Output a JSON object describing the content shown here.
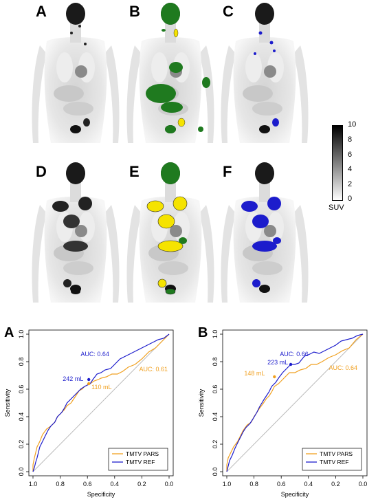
{
  "figure": {
    "pet_panels": [
      {
        "letter": "A",
        "overlay": "none"
      },
      {
        "letter": "B",
        "overlay": "yellow-green"
      },
      {
        "letter": "C",
        "overlay": "blue"
      },
      {
        "letter": "D",
        "overlay": "none"
      },
      {
        "letter": "E",
        "overlay": "yellow-green"
      },
      {
        "letter": "F",
        "overlay": "blue"
      }
    ],
    "colorbar": {
      "ticks": [
        "10",
        "8",
        "6",
        "4",
        "2",
        "0"
      ],
      "unit": "SUV"
    },
    "colors": {
      "pars": "#f0a020",
      "ref": "#1c1ccc",
      "green": "#1f7a1f",
      "yellow": "#f5e300",
      "diag": "#bbbbbb"
    }
  },
  "chart_data": [
    {
      "type": "line",
      "panel_letter": "A",
      "xlabel": "Specificity",
      "ylabel": "Sensitivity",
      "xlim": [
        1.0,
        0.0
      ],
      "ylim": [
        0.0,
        1.0
      ],
      "x_ticks": [
        "1.0",
        "0.8",
        "0.6",
        "0.4",
        "0.2",
        "0.0"
      ],
      "y_ticks": [
        "0.0",
        "0.2",
        "0.4",
        "0.6",
        "0.8",
        "1.0"
      ],
      "series": [
        {
          "name": "TMTV PARS",
          "color": "#f0a020",
          "x": [
            1.0,
            1.0,
            0.99,
            0.98,
            0.97,
            0.95,
            0.93,
            0.9,
            0.87,
            0.84,
            0.82,
            0.8,
            0.77,
            0.75,
            0.72,
            0.7,
            0.68,
            0.66,
            0.64,
            0.62,
            0.6,
            0.58,
            0.55,
            0.52,
            0.5,
            0.46,
            0.42,
            0.38,
            0.34,
            0.3,
            0.25,
            0.2,
            0.15,
            0.1,
            0.05,
            0.0
          ],
          "y": [
            0.0,
            0.05,
            0.1,
            0.14,
            0.18,
            0.22,
            0.27,
            0.31,
            0.33,
            0.36,
            0.4,
            0.42,
            0.45,
            0.48,
            0.5,
            0.53,
            0.56,
            0.59,
            0.6,
            0.62,
            0.63,
            0.64,
            0.66,
            0.67,
            0.68,
            0.69,
            0.71,
            0.71,
            0.73,
            0.76,
            0.78,
            0.82,
            0.87,
            0.9,
            0.95,
            1.0
          ]
        },
        {
          "name": "TMTV REF",
          "color": "#1c1ccc",
          "x": [
            1.0,
            0.99,
            0.98,
            0.97,
            0.96,
            0.95,
            0.93,
            0.91,
            0.89,
            0.87,
            0.84,
            0.82,
            0.79,
            0.77,
            0.75,
            0.73,
            0.7,
            0.68,
            0.65,
            0.62,
            0.6,
            0.58,
            0.56,
            0.53,
            0.5,
            0.47,
            0.43,
            0.4,
            0.36,
            0.32,
            0.28,
            0.24,
            0.2,
            0.16,
            0.12,
            0.08,
            0.04,
            0.0
          ],
          "y": [
            0.0,
            0.03,
            0.07,
            0.1,
            0.14,
            0.18,
            0.22,
            0.26,
            0.3,
            0.33,
            0.36,
            0.4,
            0.43,
            0.46,
            0.5,
            0.52,
            0.55,
            0.57,
            0.6,
            0.62,
            0.63,
            0.64,
            0.67,
            0.71,
            0.72,
            0.74,
            0.75,
            0.78,
            0.82,
            0.84,
            0.86,
            0.88,
            0.9,
            0.92,
            0.94,
            0.96,
            0.97,
            1.0
          ]
        }
      ],
      "annotations": [
        {
          "text": "AUC: 0.64",
          "color": "#1c1ccc",
          "x": 0.44,
          "y": 0.84,
          "anchor": "end"
        },
        {
          "text": "AUC: 0.61",
          "color": "#f0a020",
          "x": 0.22,
          "y": 0.73,
          "anchor": "start"
        },
        {
          "text": "242 mL",
          "color": "#1c1ccc",
          "x": 0.63,
          "y": 0.66,
          "anchor": "end",
          "point": [
            0.59,
            0.67
          ]
        },
        {
          "text": "110 mL",
          "color": "#f0a020",
          "x": 0.57,
          "y": 0.6,
          "anchor": "start",
          "point": [
            0.59,
            0.64
          ]
        }
      ],
      "legend": {
        "position": "bottom-right",
        "entries": [
          "TMTV PARS",
          "TMTV REF"
        ]
      }
    },
    {
      "type": "line",
      "panel_letter": "B",
      "xlabel": "Specificity",
      "ylabel": "Sensitivity",
      "xlim": [
        1.0,
        0.0
      ],
      "ylim": [
        0.0,
        1.0
      ],
      "x_ticks": [
        "1.0",
        "0.8",
        "0.6",
        "0.4",
        "0.2",
        "0.0"
      ],
      "y_ticks": [
        "0.0",
        "0.2",
        "0.4",
        "0.6",
        "0.8",
        "1.0"
      ],
      "series": [
        {
          "name": "TMTV PARS",
          "color": "#f0a020",
          "x": [
            1.0,
            1.0,
            0.99,
            0.97,
            0.95,
            0.92,
            0.9,
            0.88,
            0.85,
            0.82,
            0.8,
            0.78,
            0.76,
            0.73,
            0.71,
            0.69,
            0.67,
            0.65,
            0.62,
            0.6,
            0.57,
            0.54,
            0.5,
            0.46,
            0.42,
            0.38,
            0.34,
            0.3,
            0.25,
            0.2,
            0.15,
            0.1,
            0.05,
            0.0
          ],
          "y": [
            0.0,
            0.05,
            0.1,
            0.14,
            0.18,
            0.22,
            0.26,
            0.3,
            0.34,
            0.36,
            0.4,
            0.43,
            0.46,
            0.5,
            0.53,
            0.55,
            0.58,
            0.62,
            0.64,
            0.66,
            0.69,
            0.72,
            0.72,
            0.74,
            0.75,
            0.78,
            0.78,
            0.8,
            0.83,
            0.85,
            0.88,
            0.9,
            0.96,
            1.0
          ]
        },
        {
          "name": "TMTV REF",
          "color": "#1c1ccc",
          "x": [
            1.0,
            0.99,
            0.98,
            0.96,
            0.94,
            0.92,
            0.9,
            0.88,
            0.86,
            0.83,
            0.81,
            0.78,
            0.76,
            0.73,
            0.71,
            0.69,
            0.67,
            0.64,
            0.62,
            0.59,
            0.56,
            0.53,
            0.5,
            0.47,
            0.43,
            0.4,
            0.36,
            0.32,
            0.28,
            0.24,
            0.2,
            0.16,
            0.12,
            0.08,
            0.04,
            0.0
          ],
          "y": [
            0.0,
            0.04,
            0.08,
            0.12,
            0.17,
            0.21,
            0.25,
            0.29,
            0.32,
            0.35,
            0.38,
            0.43,
            0.47,
            0.52,
            0.55,
            0.58,
            0.62,
            0.65,
            0.68,
            0.72,
            0.75,
            0.78,
            0.78,
            0.79,
            0.84,
            0.85,
            0.87,
            0.86,
            0.88,
            0.9,
            0.92,
            0.95,
            0.96,
            0.97,
            0.99,
            1.0
          ]
        }
      ],
      "annotations": [
        {
          "text": "AUC: 0.66",
          "color": "#1c1ccc",
          "x": 0.4,
          "y": 0.84,
          "anchor": "end"
        },
        {
          "text": "AUC: 0.64",
          "color": "#f0a020",
          "x": 0.25,
          "y": 0.74,
          "anchor": "start"
        },
        {
          "text": "223 mL",
          "color": "#1c1ccc",
          "x": 0.55,
          "y": 0.78,
          "anchor": "end",
          "point": [
            0.53,
            0.78
          ]
        },
        {
          "text": "148 mL",
          "color": "#f0a020",
          "x": 0.72,
          "y": 0.7,
          "anchor": "end",
          "point": [
            0.65,
            0.69
          ]
        }
      ],
      "legend": {
        "position": "bottom-right",
        "entries": [
          "TMTV PARS",
          "TMTV REF"
        ]
      }
    }
  ]
}
